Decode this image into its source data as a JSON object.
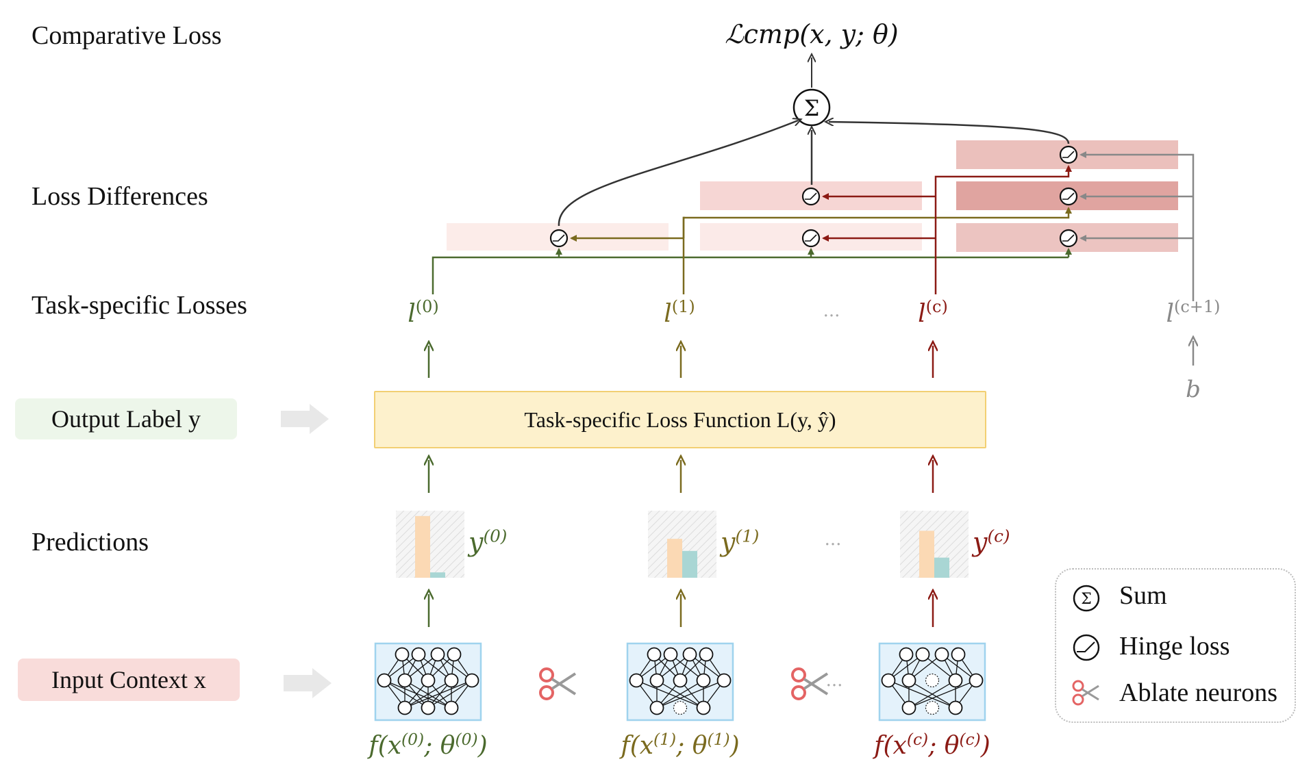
{
  "rows": {
    "comparative_loss": "Comparative Loss",
    "loss_differences": "Loss Differences",
    "task_specific_losses": "Task-specific Losses",
    "output_label": "Output Label y",
    "predictions": "Predictions",
    "input_context": "Input Context x"
  },
  "top": {
    "objective": "ℒcmp(x, y; θ)",
    "sum_symbol": "Σ"
  },
  "loss_function": {
    "label": "Task-specific Loss Function L(y, ŷ)"
  },
  "losses": [
    {
      "label": "l(0)",
      "color": "#4b6a2e"
    },
    {
      "label": "l(1)",
      "color": "#7a6a1e"
    },
    {
      "label": "l(c)",
      "color": "#8b1a14"
    },
    {
      "label": "l(c+1)",
      "color": "#888888"
    }
  ],
  "bias": "b",
  "ellipsis": "...",
  "predictions": [
    {
      "label": "y(0)",
      "color": "#4b6a2e",
      "bars": [
        0.92,
        0.08
      ]
    },
    {
      "label": "y(1)",
      "color": "#7a6a1e",
      "bars": [
        0.58,
        0.4
      ]
    },
    {
      "label": "y(c)",
      "color": "#8b1a14",
      "bars": [
        0.7,
        0.3
      ]
    }
  ],
  "models": [
    {
      "label": "f(x(0); θ(0))",
      "color": "#4b6a2e",
      "ablated": []
    },
    {
      "label": "f(x(1); θ(1))",
      "color": "#7a6a1e",
      "ablated": [
        "bottom-middle"
      ]
    },
    {
      "label": "f(x(c); θ(c))",
      "color": "#8b1a14",
      "ablated": [
        "middle-center",
        "bottom-middle"
      ]
    }
  ],
  "legend": {
    "sum": "Sum",
    "hinge": "Hinge loss",
    "ablate": "Ablate neurons"
  },
  "colors": {
    "green": "#4b6a2e",
    "olive": "#7a6a1e",
    "red": "#8b1a14",
    "gray": "#888888",
    "loss_box_fill": "#fdf1cc",
    "loss_box_border": "#f2cf72",
    "output_pill": "#edf6ea",
    "input_pill": "#f9dcda",
    "model_fill": "#e4f2fb",
    "model_border": "#9fd3ee",
    "bar_orange": "#fbd9b4",
    "bar_teal": "#a9d6d4",
    "scissors": "#e46464"
  }
}
